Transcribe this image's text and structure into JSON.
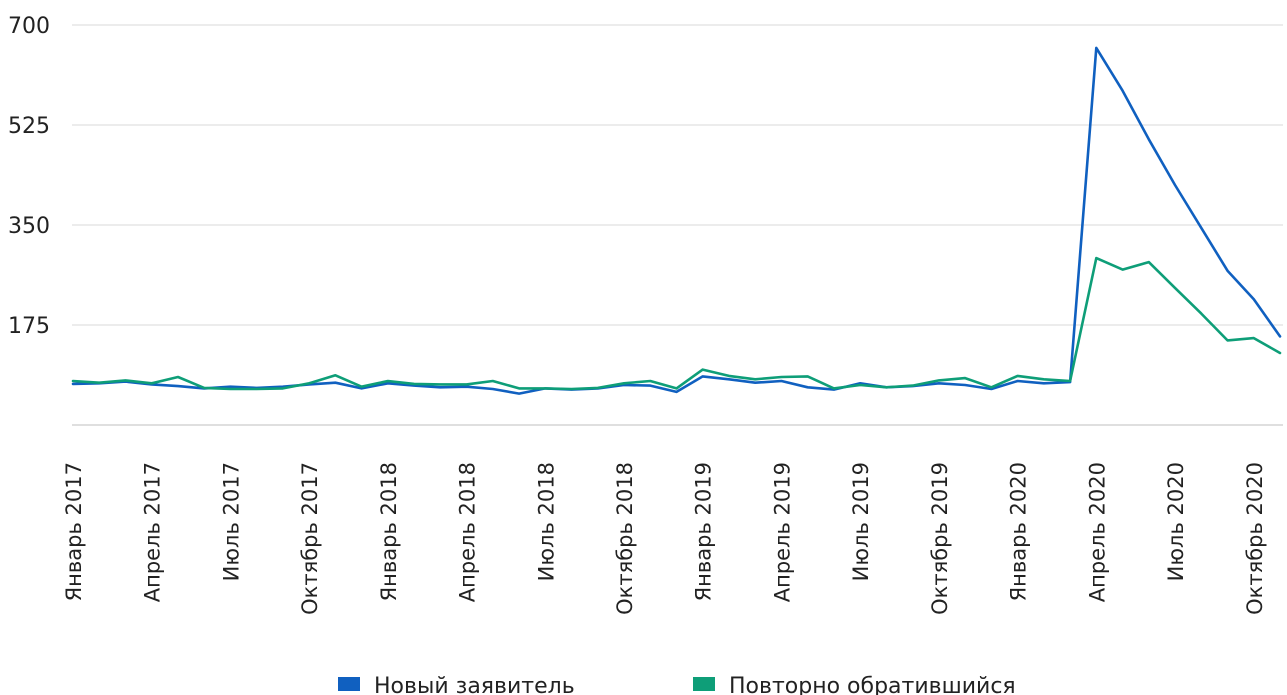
{
  "chart_data": {
    "type": "line",
    "title": "",
    "xlabel": "",
    "ylabel": "",
    "ylim": [
      0,
      700
    ],
    "yticks": [
      175,
      350,
      525,
      700
    ],
    "grid": true,
    "legend_position": "bottom",
    "x": [
      "Январь 2017",
      "Февраль 2017",
      "Март 2017",
      "Апрель 2017",
      "Май 2017",
      "Июнь 2017",
      "Июль 2017",
      "Август 2017",
      "Сентябрь 2017",
      "Октябрь 2017",
      "Ноябрь 2017",
      "Декабрь 2017",
      "Январь 2018",
      "Февраль 2018",
      "Март 2018",
      "Апрель 2018",
      "Май 2018",
      "Июнь 2018",
      "Июль 2018",
      "Август 2018",
      "Сентябрь 2018",
      "Октябрь 2018",
      "Ноябрь 2018",
      "Декабрь 2018",
      "Январь 2019",
      "Февраль 2019",
      "Март 2019",
      "Апрель 2019",
      "Май 2019",
      "Июнь 2019",
      "Июль 2019",
      "Август 2019",
      "Сентябрь 2019",
      "Октябрь 2019",
      "Ноябрь 2019",
      "Декабрь 2019",
      "Январь 2020",
      "Февраль 2020",
      "Март 2020",
      "Апрель 2020",
      "Май 2020",
      "Июнь 2020",
      "Июль 2020",
      "Август 2020",
      "Сентябрь 2020",
      "Октябрь 2020",
      "Ноябрь 2020"
    ],
    "x_tick_labels": [
      "Январь 2017",
      "",
      "",
      "Апрель 2017",
      "",
      "",
      "Июль 2017",
      "",
      "",
      "Октябрь 2017",
      "",
      "",
      "Январь 2018",
      "",
      "",
      "Апрель 2018",
      "",
      "",
      "Июль 2018",
      "",
      "",
      "Октябрь 2018",
      "",
      "",
      "Январь 2019",
      "",
      "",
      "Апрель 2019",
      "",
      "",
      "Июль 2019",
      "",
      "",
      "Октябрь 2019",
      "",
      "",
      "Январь 2020",
      "",
      "",
      "Апрель 2020",
      "",
      "",
      "Июль 2020",
      "",
      "",
      "Октябрь 2020",
      ""
    ],
    "series": [
      {
        "name": "Новый заявитель",
        "color": "#1060c0",
        "values": [
          72,
          73,
          76,
          71,
          68,
          64,
          67,
          65,
          67,
          71,
          74,
          64,
          73,
          69,
          66,
          67,
          63,
          55,
          64,
          62,
          64,
          70,
          69,
          58,
          85,
          80,
          74,
          77,
          66,
          62,
          73,
          66,
          68,
          73,
          70,
          63,
          77,
          73,
          75,
          660,
          585,
          500,
          420,
          345,
          270,
          220,
          155
        ]
      },
      {
        "name": "Повторно обратившийся",
        "color": "#0e9e78",
        "values": [
          77,
          74,
          78,
          73,
          84,
          65,
          63,
          63,
          64,
          73,
          87,
          67,
          77,
          72,
          71,
          71,
          77,
          64,
          64,
          63,
          65,
          73,
          77,
          64,
          97,
          86,
          80,
          84,
          85,
          64,
          70,
          66,
          69,
          78,
          82,
          66,
          86,
          80,
          77,
          292,
          272,
          285,
          240,
          195,
          148,
          152,
          126
        ]
      }
    ]
  },
  "legend": {
    "items": [
      {
        "label": "Новый заявитель",
        "color": "#1060c0"
      },
      {
        "label": "Повторно обратившийся",
        "color": "#0e9e78"
      }
    ]
  }
}
